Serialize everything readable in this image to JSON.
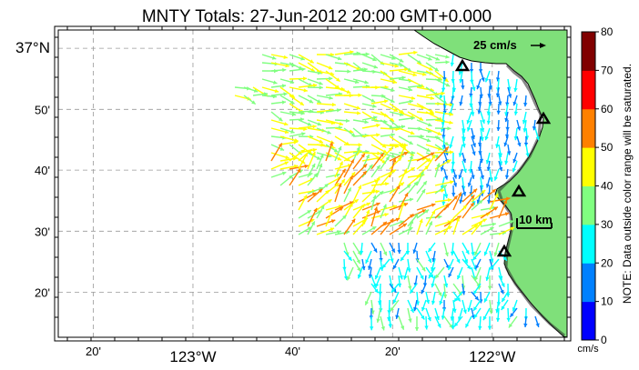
{
  "title": "MNTY Totals: 27-Jun-2012 20:00 GMT+0.000",
  "map": {
    "lon_ticks": [
      {
        "lon": -123.333,
        "label": "20'"
      },
      {
        "lon": -123.0,
        "label": "123°W"
      },
      {
        "lon": -122.667,
        "label": "40'"
      },
      {
        "lon": -122.333,
        "label": "20'"
      },
      {
        "lon": -122.0,
        "label": "122°W"
      }
    ],
    "lat_ticks": [
      {
        "lat": 37.0,
        "label": "37°N"
      },
      {
        "lat": 36.833,
        "label": "50'"
      },
      {
        "lat": 36.667,
        "label": "40'"
      },
      {
        "lat": 36.5,
        "label": "30'"
      },
      {
        "lat": 36.333,
        "label": "20'"
      }
    ],
    "lon_range": [
      -123.45,
      -121.75
    ],
    "lat_range": [
      36.21,
      37.05
    ],
    "grid": "dashed",
    "land_color": "#7fe07a",
    "sea_color": "#ffffff"
  },
  "scale_vector": {
    "label": "25 cm/s"
  },
  "scale_bar": {
    "label": "10 km"
  },
  "stations": [
    "triangle-marker",
    "triangle-marker",
    "triangle-marker",
    "triangle-marker"
  ],
  "colorbar": {
    "ticks": [
      "0",
      "10",
      "20",
      "30",
      "40",
      "50",
      "60",
      "70",
      "80"
    ],
    "unit": "cm/s",
    "note": "NOTE: Data outside color range will be saturated.",
    "colors": [
      "#0000ff",
      "#0080ff",
      "#00ffff",
      "#80ff80",
      "#ffff00",
      "#ff8000",
      "#ff0000",
      "#800000"
    ]
  }
}
